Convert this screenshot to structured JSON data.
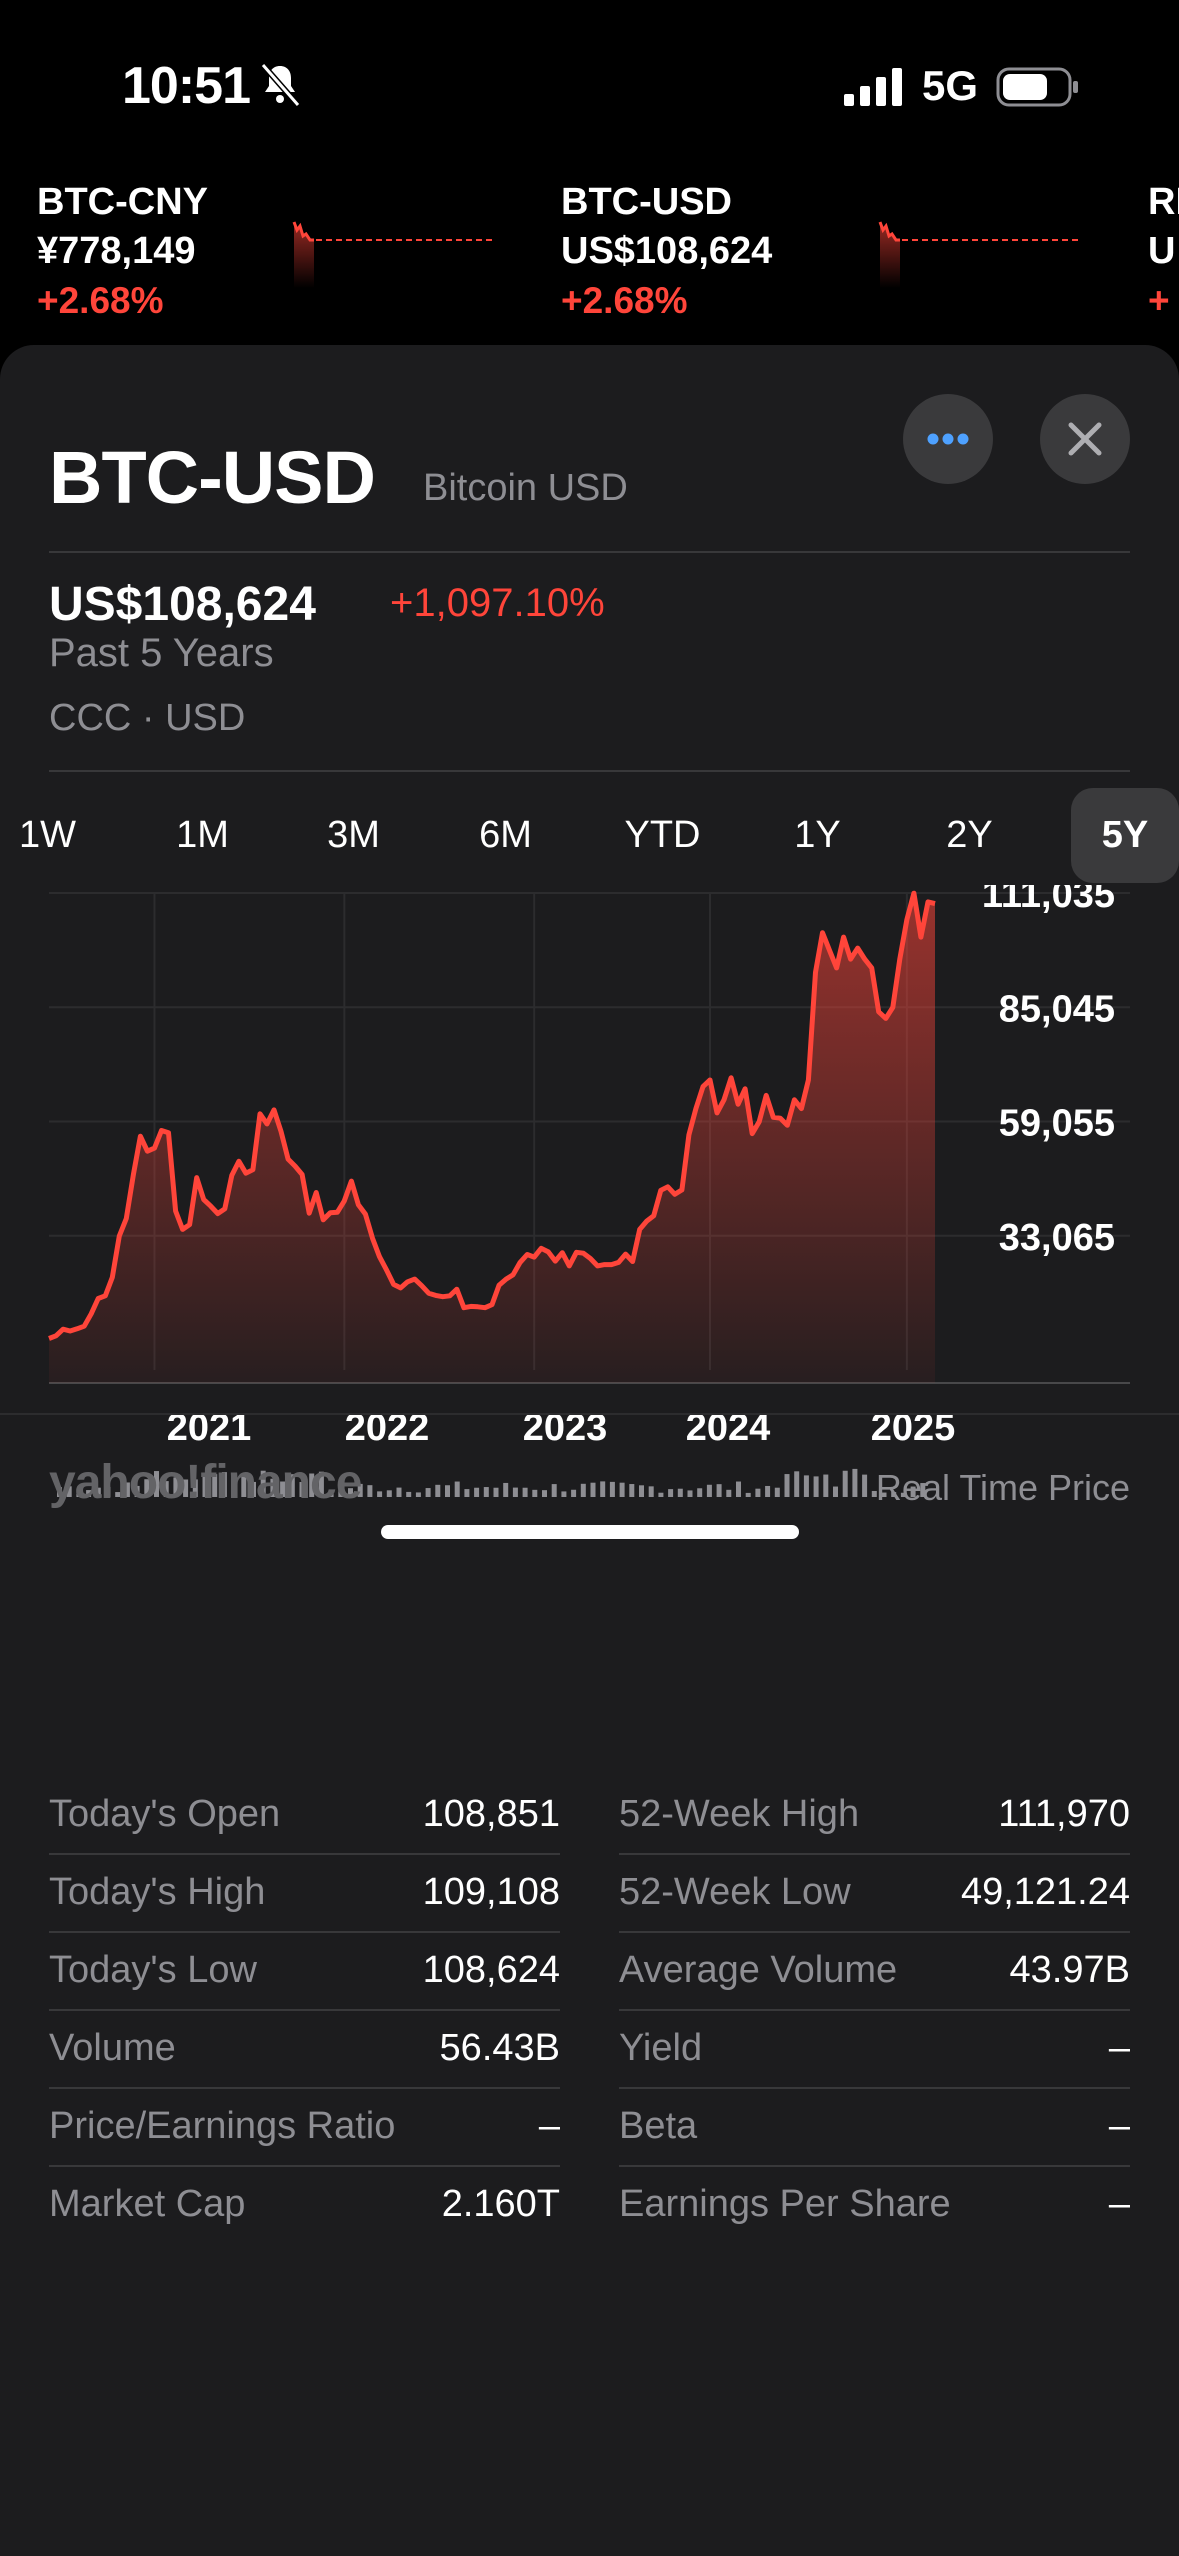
{
  "status": {
    "time": "10:51",
    "network": "5G"
  },
  "tickers": [
    {
      "symbol": "BTC-CNY",
      "price": "¥778,149",
      "change": "+2.68%"
    },
    {
      "symbol": "BTC-USD",
      "price": "US$108,624",
      "change": "+2.68%"
    },
    {
      "symbol": "RI",
      "price": "U",
      "change": "+"
    }
  ],
  "header": {
    "symbol": "BTC-USD",
    "name": "Bitcoin USD"
  },
  "quote": {
    "price": "US$108,624",
    "change": "+1,097.10%",
    "period": "Past 5 Years",
    "exchange": "CCC · USD"
  },
  "ranges": [
    "1W",
    "1M",
    "3M",
    "6M",
    "YTD",
    "1Y",
    "2Y",
    "5Y"
  ],
  "selected_range": "5Y",
  "chart_data": {
    "type": "area",
    "title": "",
    "xlabel": "",
    "ylabel": "",
    "x_tick_labels": [
      "2021",
      "2022",
      "2023",
      "2024",
      "2025"
    ],
    "y_tick_labels": [
      "111,035",
      "85,045",
      "59,055",
      "33,065"
    ],
    "ylim": [
      7075,
      111035
    ],
    "color": "#ff453a",
    "series": [
      {
        "values": [
          9700,
          10300,
          11800,
          11400,
          11900,
          12500,
          15300,
          18800,
          19400,
          23600,
          33000,
          37000,
          47000,
          55700,
          52300,
          53000,
          57000,
          56500,
          38700,
          34500,
          35600,
          46300,
          41300,
          39800,
          38100,
          39200,
          46800,
          50000,
          47300,
          48100,
          60800,
          58500,
          61700,
          56800,
          50500,
          48900,
          47000,
          38200,
          42900,
          36700,
          38300,
          38400,
          41000,
          45500,
          40100,
          38000,
          32500,
          28300,
          25300,
          22000,
          21200,
          22600,
          23200,
          21700,
          20000,
          19500,
          19200,
          19400,
          20900,
          16700,
          17000,
          16900,
          16700,
          17400,
          21800,
          23200,
          24200,
          27000,
          28800,
          28200,
          30200,
          29400,
          27300,
          29200,
          26200,
          29300,
          29100,
          27900,
          26200,
          26500,
          26500,
          27000,
          28900,
          27200,
          34500,
          36400,
          37600,
          43400,
          44200,
          42500,
          43500,
          56000,
          62000,
          67000,
          68500,
          61000,
          64000,
          69000,
          63000,
          66500,
          56300,
          59000,
          65000,
          60000,
          59800,
          58200,
          64000,
          62000,
          68500,
          93000,
          102000,
          98000,
          94000,
          101000,
          96000,
          98500,
          96000,
          94000,
          84000,
          82500,
          85000,
          96000,
          105000,
          111000,
          101000,
          109000,
          108624
        ]
      }
    ]
  },
  "stats_left": [
    {
      "label": "Today's Open",
      "value": "108,851"
    },
    {
      "label": "Today's High",
      "value": "109,108"
    },
    {
      "label": "Today's Low",
      "value": "108,624"
    },
    {
      "label": "Volume",
      "value": "56.43B"
    },
    {
      "label": "Price/Earnings Ratio",
      "value": "–"
    },
    {
      "label": "Market Cap",
      "value": "2.160T"
    }
  ],
  "stats_right": [
    {
      "label": "52-Week High",
      "value": "111,970"
    },
    {
      "label": "52-Week Low",
      "value": "49,121.24"
    },
    {
      "label": "Average Volume",
      "value": "43.97B"
    },
    {
      "label": "Yield",
      "value": "–"
    },
    {
      "label": "Beta",
      "value": "–"
    },
    {
      "label": "Earnings Per Share",
      "value": "–"
    }
  ],
  "footer": {
    "brand": "yahoo!finance",
    "note": "Real Time Price"
  }
}
